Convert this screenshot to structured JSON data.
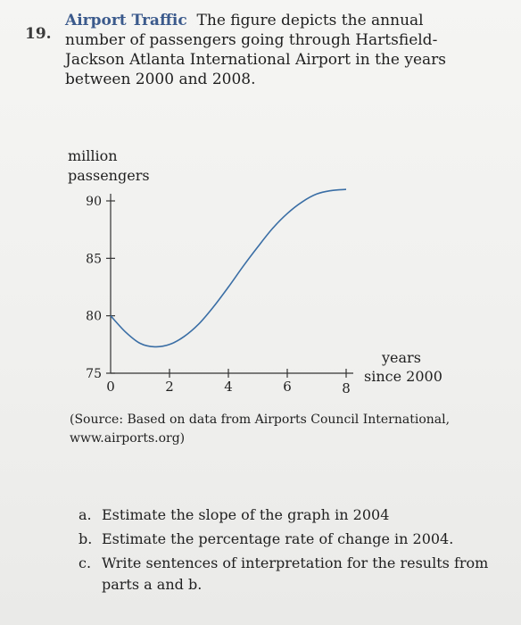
{
  "problem": {
    "number": "19.",
    "title": "Airport Traffic",
    "text": "The figure depicts the annual number of passengers going through Hartsfield-Jackson Atlanta International Airport in the years between 2000 and 2008."
  },
  "chart_data": {
    "type": "line",
    "ylabel_line1": "million",
    "ylabel_line2": "passengers",
    "xlabel_line1": "years",
    "xlabel_line2": "since 2000",
    "x_ticks": [
      0,
      2,
      4,
      6,
      8
    ],
    "y_ticks": [
      75,
      80,
      85,
      90
    ],
    "xlim": [
      0,
      8
    ],
    "ylim": [
      75,
      90
    ],
    "grid": false,
    "series": [
      {
        "x": [
          0,
          0.5,
          1,
          1.5,
          2,
          2.5,
          3,
          3.5,
          4,
          4.5,
          5,
          5.5,
          6,
          6.5,
          7,
          7.5,
          8
        ],
        "values": [
          80.0,
          78.6,
          77.6,
          77.3,
          77.5,
          78.2,
          79.3,
          80.8,
          82.5,
          84.3,
          86.0,
          87.6,
          88.9,
          89.9,
          90.6,
          90.9,
          91.0
        ]
      }
    ]
  },
  "source": {
    "line1": "(Source: Based on data from Airports Council International,",
    "line2": "www.airports.org)"
  },
  "questions": [
    {
      "letter": "a.",
      "lines": [
        "Estimate the slope of the graph in 2004"
      ]
    },
    {
      "letter": "b.",
      "lines": [
        "Estimate the percentage rate of change in 2004."
      ]
    },
    {
      "letter": "c.",
      "lines": [
        "Write sentences of interpretation for the results from",
        "parts a and b."
      ]
    }
  ]
}
